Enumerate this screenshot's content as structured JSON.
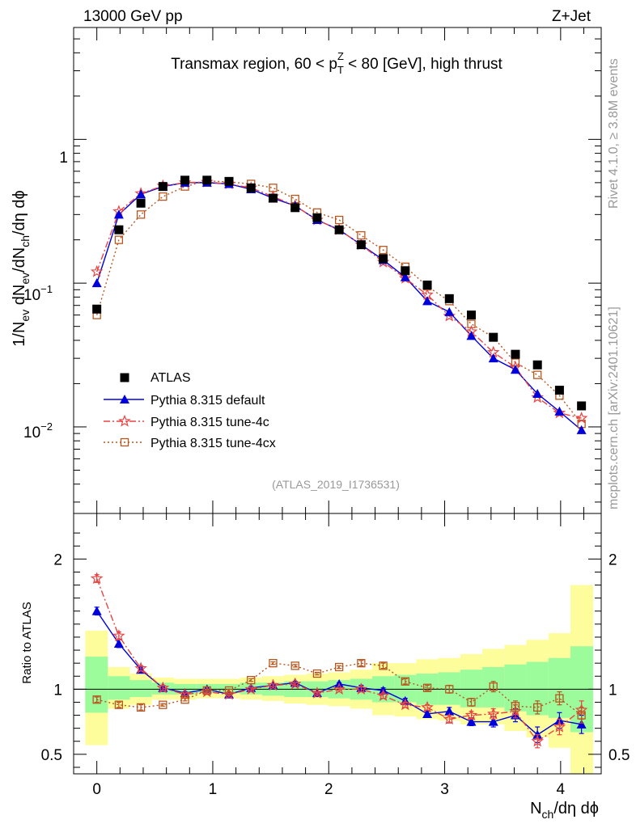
{
  "header": {
    "left": "13000 GeV pp",
    "right": "Z+Jet"
  },
  "side_labels": {
    "rivet": "Rivet 4.1.0, ≥ 3.8M events",
    "mcplots": "mcplots.cern.ch [arXiv:2401.10621]"
  },
  "chart_data": [
    {
      "type": "scatter",
      "panel": "main",
      "title": "Transmax region, 60 < p",
      "title_sup": "Z",
      "title_sub": "T",
      "title_tail": " < 80 [GeV], high thrust",
      "ylabel_parts": [
        "1/N",
        "ev",
        " dN",
        "ev",
        "/dN",
        "ch",
        "/dη dϕ"
      ],
      "yscale": "log",
      "ylim": [
        0.0025,
        6
      ],
      "xlim": [
        -0.2,
        4.35
      ],
      "ytick_labels": [
        {
          "base": "10",
          "exp": "−2"
        },
        {
          "base": "10",
          "exp": "−1"
        },
        {
          "base": "1",
          "exp": ""
        }
      ],
      "watermark": "(ATLAS_2019_I1736531)",
      "legend_position": "lower-left",
      "x": [
        0.0,
        0.19,
        0.38,
        0.57,
        0.76,
        0.95,
        1.14,
        1.33,
        1.52,
        1.71,
        1.9,
        2.09,
        2.28,
        2.47,
        2.66,
        2.85,
        3.04,
        3.23,
        3.42,
        3.61,
        3.8,
        3.99,
        4.18
      ],
      "series": [
        {
          "name": "ATLAS",
          "style": "data",
          "values": [
            0.066,
            0.235,
            0.36,
            0.47,
            0.52,
            0.52,
            0.51,
            0.46,
            0.39,
            0.335,
            0.285,
            0.235,
            0.185,
            0.148,
            0.122,
            0.097,
            0.078,
            0.06,
            0.042,
            0.032,
            0.027,
            0.018,
            0.014
          ]
        },
        {
          "name": "Pythia 8.315 default",
          "style": "default",
          "values": [
            0.1,
            0.3,
            0.415,
            0.47,
            0.5,
            0.5,
            0.49,
            0.45,
            0.39,
            0.345,
            0.275,
            0.235,
            0.185,
            0.145,
            0.11,
            0.075,
            0.063,
            0.043,
            0.03,
            0.025,
            0.017,
            0.0128,
            0.0095
          ]
        },
        {
          "name": "Pythia 8.315 tune-4c",
          "style": "tune4c",
          "values": [
            0.12,
            0.315,
            0.42,
            0.475,
            0.5,
            0.505,
            0.49,
            0.46,
            0.4,
            0.345,
            0.275,
            0.235,
            0.185,
            0.14,
            0.108,
            0.083,
            0.059,
            0.046,
            0.033,
            0.026,
            0.016,
            0.0125,
            0.0115
          ]
        },
        {
          "name": "Pythia 8.315 tune-4cx",
          "style": "tune4cx",
          "values": [
            0.06,
            0.2,
            0.3,
            0.4,
            0.47,
            0.515,
            0.505,
            0.49,
            0.46,
            0.385,
            0.31,
            0.275,
            0.215,
            0.17,
            0.13,
            0.095,
            0.075,
            0.052,
            0.042,
            0.028,
            0.023,
            0.0165,
            0.0105
          ]
        }
      ]
    },
    {
      "type": "scatter",
      "panel": "ratio",
      "ylabel": "Ratio to ATLAS",
      "ylim": [
        0.35,
        2.35
      ],
      "xlim": [
        -0.2,
        4.35
      ],
      "yticks": [
        0.5,
        1,
        2
      ],
      "ytick_labels": [
        "0.5",
        "1",
        "2"
      ],
      "xticks": [
        0,
        1,
        2,
        3,
        4
      ],
      "xtick_labels": [
        "0",
        "1",
        "2",
        "3",
        "4"
      ],
      "xlabel": "N",
      "xlabel_sub": "ch",
      "xlabel_tail": "/dη dϕ",
      "x_edges": [
        -0.1,
        0.095,
        0.285,
        0.475,
        0.665,
        0.855,
        1.045,
        1.235,
        1.425,
        1.615,
        1.805,
        1.995,
        2.185,
        2.375,
        2.565,
        2.755,
        2.945,
        3.135,
        3.325,
        3.515,
        3.705,
        3.895,
        4.085,
        4.28
      ],
      "band_green": [
        [
          0.82,
          1.25
        ],
        [
          0.92,
          1.1
        ],
        [
          0.94,
          1.07
        ],
        [
          0.96,
          1.05
        ],
        [
          0.96,
          1.04
        ],
        [
          0.97,
          1.04
        ],
        [
          0.97,
          1.04
        ],
        [
          0.96,
          1.05
        ],
        [
          0.95,
          1.05
        ],
        [
          0.94,
          1.06
        ],
        [
          0.94,
          1.06
        ],
        [
          0.93,
          1.07
        ],
        [
          0.92,
          1.08
        ],
        [
          0.9,
          1.1
        ],
        [
          0.9,
          1.11
        ],
        [
          0.88,
          1.12
        ],
        [
          0.88,
          1.13
        ],
        [
          0.86,
          1.15
        ],
        [
          0.86,
          1.17
        ],
        [
          0.83,
          1.19
        ],
        [
          0.8,
          1.21
        ],
        [
          0.78,
          1.24
        ],
        [
          0.67,
          1.33
        ]
      ],
      "band_yellow": [
        [
          0.57,
          1.45
        ],
        [
          0.85,
          1.17
        ],
        [
          0.88,
          1.12
        ],
        [
          0.92,
          1.09
        ],
        [
          0.92,
          1.08
        ],
        [
          0.93,
          1.08
        ],
        [
          0.93,
          1.08
        ],
        [
          0.92,
          1.09
        ],
        [
          0.91,
          1.1
        ],
        [
          0.89,
          1.11
        ],
        [
          0.88,
          1.12
        ],
        [
          0.87,
          1.13
        ],
        [
          0.85,
          1.15
        ],
        [
          0.8,
          1.2
        ],
        [
          0.79,
          1.2
        ],
        [
          0.77,
          1.23
        ],
        [
          0.76,
          1.24
        ],
        [
          0.73,
          1.27
        ],
        [
          0.73,
          1.31
        ],
        [
          0.68,
          1.34
        ],
        [
          0.63,
          1.38
        ],
        [
          0.55,
          1.43
        ],
        [
          0.3,
          1.8
        ]
      ],
      "series": [
        {
          "name": "Pythia 8.315 default",
          "style": "default",
          "values": [
            1.6,
            1.35,
            1.15,
            1.01,
            0.97,
            1.0,
            0.96,
            1.01,
            1.03,
            1.05,
            0.97,
            1.04,
            1.01,
            0.99,
            0.91,
            0.81,
            0.83,
            0.75,
            0.75,
            0.8,
            0.65,
            0.76,
            0.73
          ],
          "err": [
            0.03,
            0.03,
            0.02,
            0.02,
            0.01,
            0.01,
            0.01,
            0.01,
            0.01,
            0.01,
            0.01,
            0.01,
            0.02,
            0.02,
            0.02,
            0.02,
            0.03,
            0.03,
            0.04,
            0.05,
            0.06,
            0.06,
            0.07
          ]
        },
        {
          "name": "Pythia 8.315 tune-4c",
          "style": "tune4c",
          "values": [
            1.85,
            1.41,
            1.16,
            1.01,
            0.96,
            0.98,
            0.96,
            1.0,
            1.03,
            1.04,
            0.97,
            1.0,
            1.0,
            0.95,
            0.88,
            0.86,
            0.77,
            0.8,
            0.81,
            0.83,
            0.6,
            0.71,
            0.84
          ],
          "err": [
            0.03,
            0.03,
            0.02,
            0.02,
            0.01,
            0.01,
            0.01,
            0.01,
            0.01,
            0.01,
            0.01,
            0.01,
            0.02,
            0.02,
            0.02,
            0.02,
            0.03,
            0.03,
            0.04,
            0.05,
            0.05,
            0.06,
            0.07
          ]
        },
        {
          "name": "Pythia 8.315 tune-4cx",
          "style": "tune4cx",
          "values": [
            0.92,
            0.88,
            0.86,
            0.88,
            0.92,
            0.99,
            0.99,
            1.07,
            1.2,
            1.18,
            1.12,
            1.17,
            1.2,
            1.18,
            1.06,
            1.01,
            1.0,
            0.9,
            1.02,
            0.87,
            0.86,
            0.93,
            0.8
          ],
          "err": [
            0.02,
            0.02,
            0.02,
            0.01,
            0.01,
            0.01,
            0.01,
            0.01,
            0.01,
            0.01,
            0.01,
            0.01,
            0.02,
            0.02,
            0.02,
            0.02,
            0.03,
            0.03,
            0.04,
            0.04,
            0.05,
            0.05,
            0.06
          ]
        }
      ]
    }
  ],
  "colors": {
    "atlas": "#000000",
    "default": "#0000dd",
    "tune4c": "#e84343",
    "tune4cx": "#b8561f",
    "band_green": "#9cfc9c",
    "band_yellow": "#fdfd9c",
    "side_text": "#999999",
    "watermark": "#999999"
  }
}
